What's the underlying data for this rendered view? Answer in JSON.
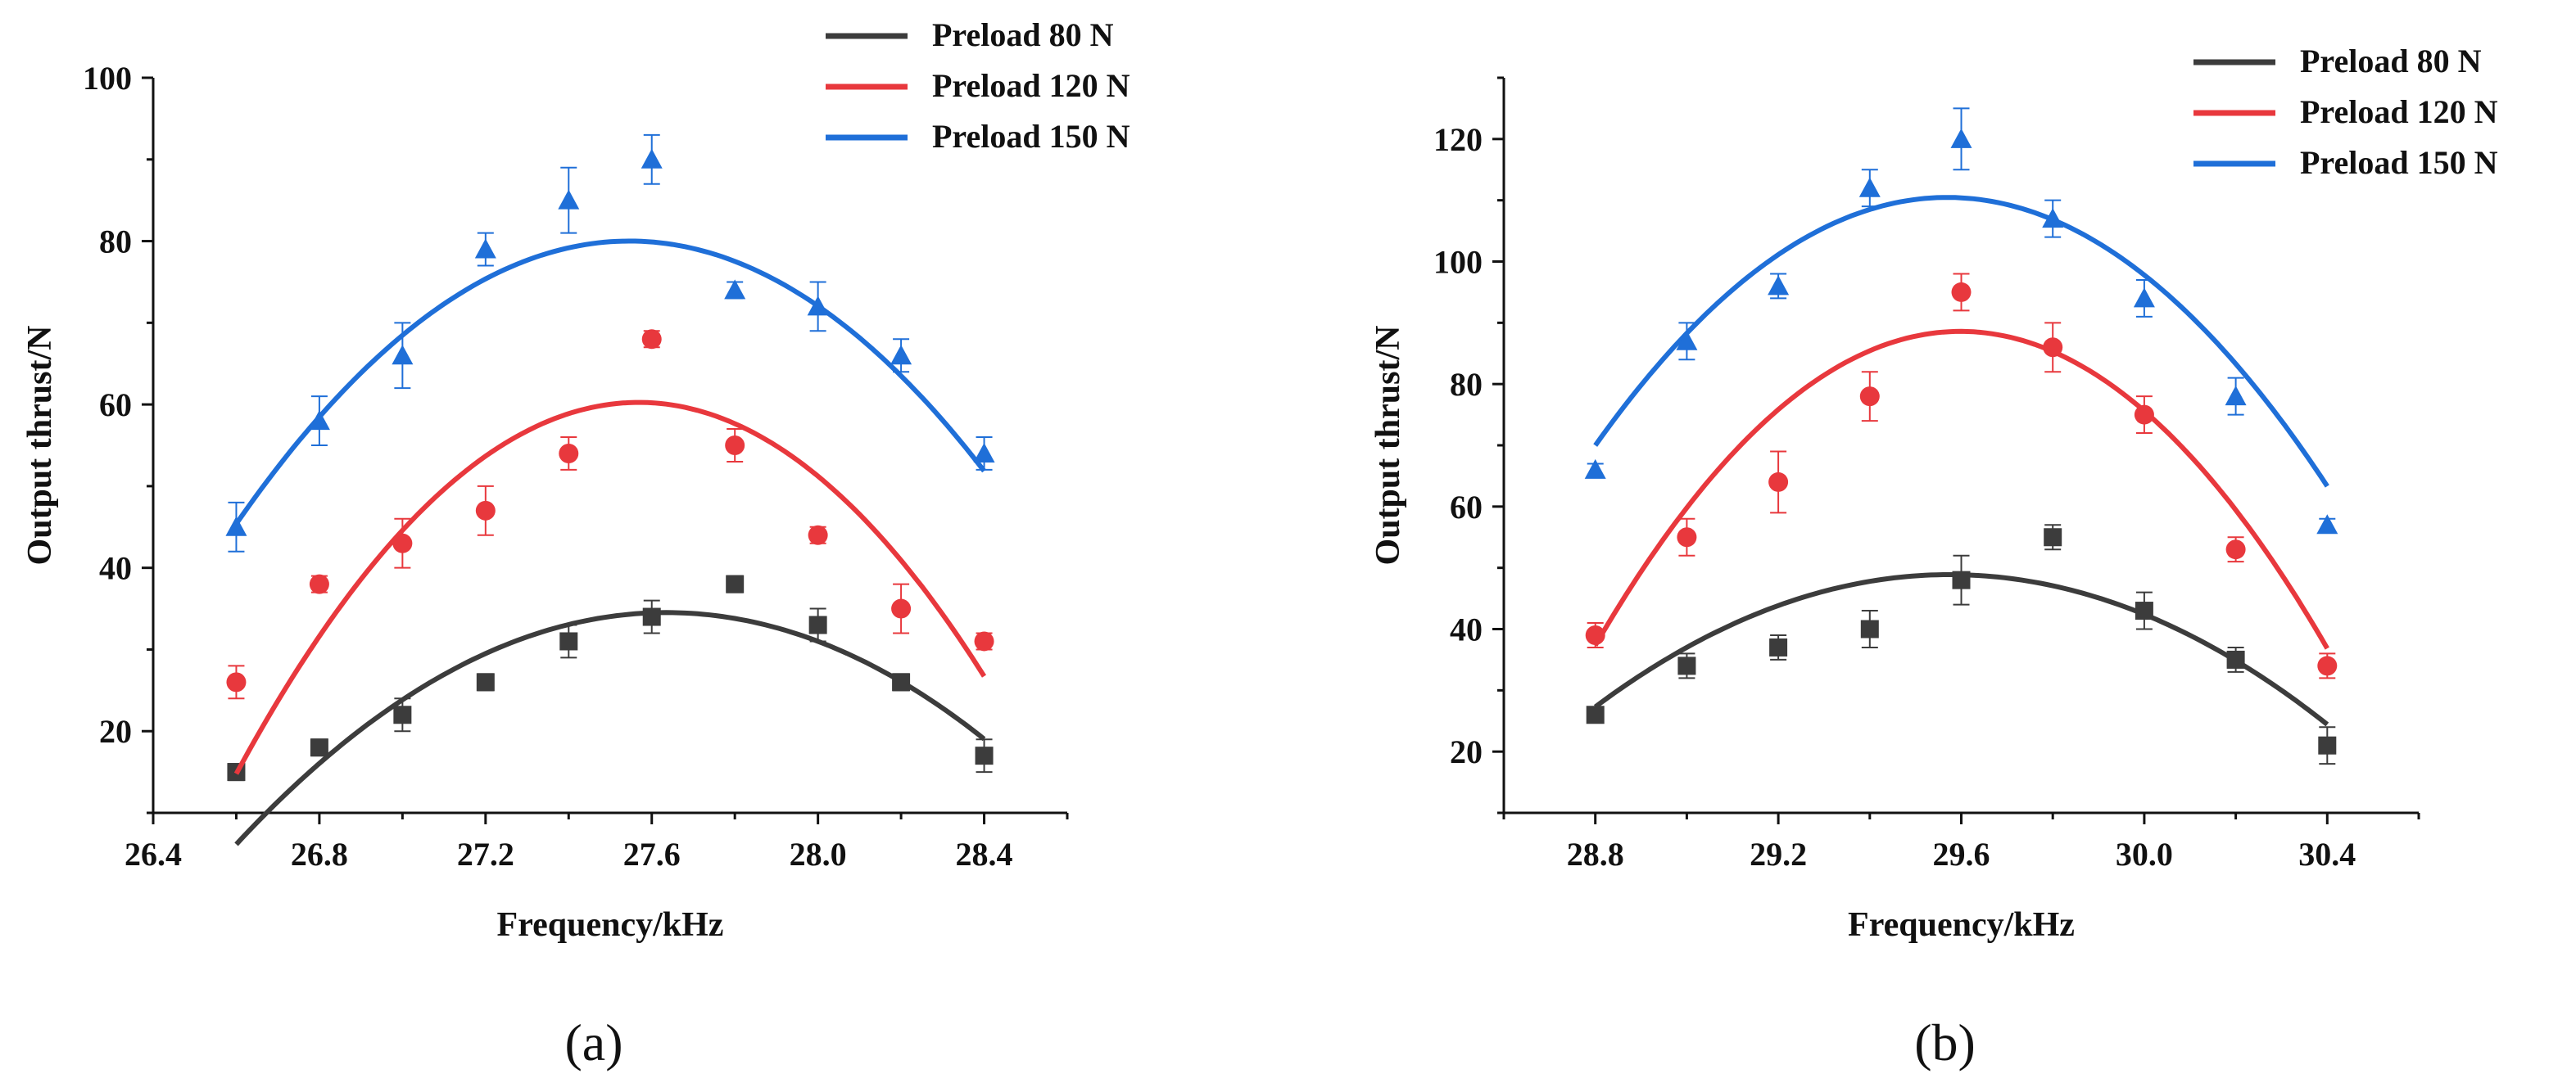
{
  "chart_data": [
    {
      "type": "scatter",
      "panel_label": "(a)",
      "xlabel": "Frequency/kHz",
      "ylabel": "Output thrust/N",
      "xlim": [
        26.4,
        28.6
      ],
      "ylim": [
        10,
        100
      ],
      "xticks": [
        26.4,
        26.8,
        27.2,
        27.6,
        28.0,
        28.4
      ],
      "xtick_labels": [
        "26.4",
        "26.8",
        "27.2",
        "27.6",
        "28.0",
        "28.4"
      ],
      "yticks": [
        20,
        40,
        60,
        80,
        100
      ],
      "ytick_labels": [
        "20",
        "40",
        "60",
        "80",
        "100"
      ],
      "legend_position": "top-right",
      "x": [
        26.6,
        26.8,
        27.0,
        27.2,
        27.4,
        27.6,
        27.8,
        28.0,
        28.2,
        28.4
      ],
      "series": [
        {
          "name": "Preload 80 N",
          "color": "#3c3c3c",
          "marker": "square",
          "values": [
            15,
            18,
            22,
            26,
            31,
            34,
            38,
            33,
            26,
            17
          ],
          "errors": [
            1,
            1,
            2,
            1,
            2,
            2,
            1,
            2,
            1,
            2
          ],
          "fit": {
            "a": -26.47,
            "b": 1463.01,
            "c": -20180.8
          }
        },
        {
          "name": "Preload 120 N",
          "color": "#e8383d",
          "marker": "circle",
          "values": [
            26,
            38,
            43,
            47,
            54,
            68,
            55,
            44,
            35,
            31
          ],
          "errors": [
            2,
            1,
            3,
            3,
            2,
            1,
            2,
            1,
            3,
            1
          ],
          "fit": {
            "a": -48.48,
            "b": 2673.03,
            "c": -36785.3
          }
        },
        {
          "name": "Preload 150 N",
          "color": "#1f6fd8",
          "marker": "triangle",
          "values": [
            45,
            58,
            66,
            79,
            85,
            90,
            74,
            72,
            66,
            54
          ],
          "errors": [
            3,
            3,
            4,
            2,
            4,
            3,
            1,
            3,
            2,
            2
          ],
          "fit": {
            "a": -38.64,
            "b": 2128.79,
            "c": -29240.3
          }
        }
      ]
    },
    {
      "type": "scatter",
      "panel_label": "(b)",
      "xlabel": "Frequency/kHz",
      "ylabel": "Output thrust/N",
      "xlim": [
        28.6,
        30.6
      ],
      "ylim": [
        10,
        130
      ],
      "xticks": [
        28.8,
        29.2,
        29.6,
        30.0,
        30.4
      ],
      "xtick_labels": [
        "28.8",
        "29.2",
        "29.6",
        "30.0",
        "30.4"
      ],
      "yticks": [
        20,
        40,
        60,
        80,
        100,
        120
      ],
      "ytick_labels": [
        "20",
        "40",
        "60",
        "80",
        "100",
        "120"
      ],
      "legend_position": "top-right",
      "x": [
        28.8,
        29.0,
        29.2,
        29.4,
        29.6,
        29.8,
        30.0,
        30.2,
        30.4
      ],
      "series": [
        {
          "name": "Preload 80 N",
          "color": "#3c3c3c",
          "marker": "square",
          "values": [
            26,
            34,
            37,
            40,
            48,
            55,
            43,
            35,
            21
          ],
          "errors": [
            1,
            2,
            2,
            3,
            4,
            2,
            3,
            2,
            3
          ],
          "fit": {
            "a": -35.94,
            "b": 2125.85,
            "c": -31387.1
          }
        },
        {
          "name": "Preload 120 N",
          "color": "#e8383d",
          "marker": "circle",
          "values": [
            39,
            55,
            64,
            78,
            95,
            86,
            75,
            53,
            34
          ],
          "errors": [
            2,
            3,
            5,
            4,
            3,
            4,
            3,
            2,
            2
          ],
          "fit": {
            "a": -80.47,
            "b": 4763.52,
            "c": -70407.0
          }
        },
        {
          "name": "Preload 150 N",
          "color": "#1f6fd8",
          "marker": "triangle",
          "values": [
            66,
            87,
            96,
            112,
            120,
            107,
            94,
            78,
            57
          ],
          "errors": [
            1,
            3,
            2,
            3,
            5,
            3,
            3,
            3,
            1
          ],
          "fit": {
            "a": -68.36,
            "b": 4042.75,
            "c": -59660.7
          }
        }
      ]
    }
  ]
}
